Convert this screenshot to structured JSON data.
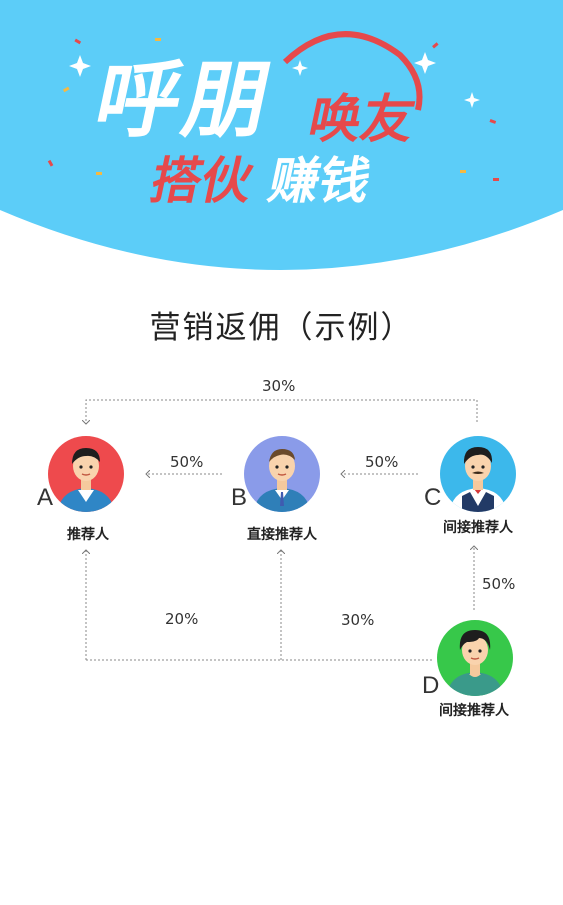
{
  "banner": {
    "line1_left": "呼朋",
    "line1_right": "唤友",
    "line2_left": "搭伙",
    "line2_right": "赚钱",
    "colors": {
      "sky": "#5ccdf8",
      "red": "#e6494b",
      "white": "#ffffff"
    }
  },
  "title": "营销返佣（示例）",
  "people": {
    "A": {
      "letter": "A",
      "role": "推荐人",
      "color": "#ee4a4d"
    },
    "B": {
      "letter": "B",
      "role": "直接推荐人",
      "color": "#8a9be9"
    },
    "C": {
      "letter": "C",
      "role": "间接推荐人",
      "color": "#3cb8eb"
    },
    "D": {
      "letter": "D",
      "role": "间接推荐人",
      "color": "#37c84a"
    }
  },
  "flows": {
    "c_to_a": "30%",
    "b_to_a": "50%",
    "c_to_b": "50%",
    "d_to_c": "50%",
    "d_to_a": "20%",
    "d_to_b": "30%"
  }
}
